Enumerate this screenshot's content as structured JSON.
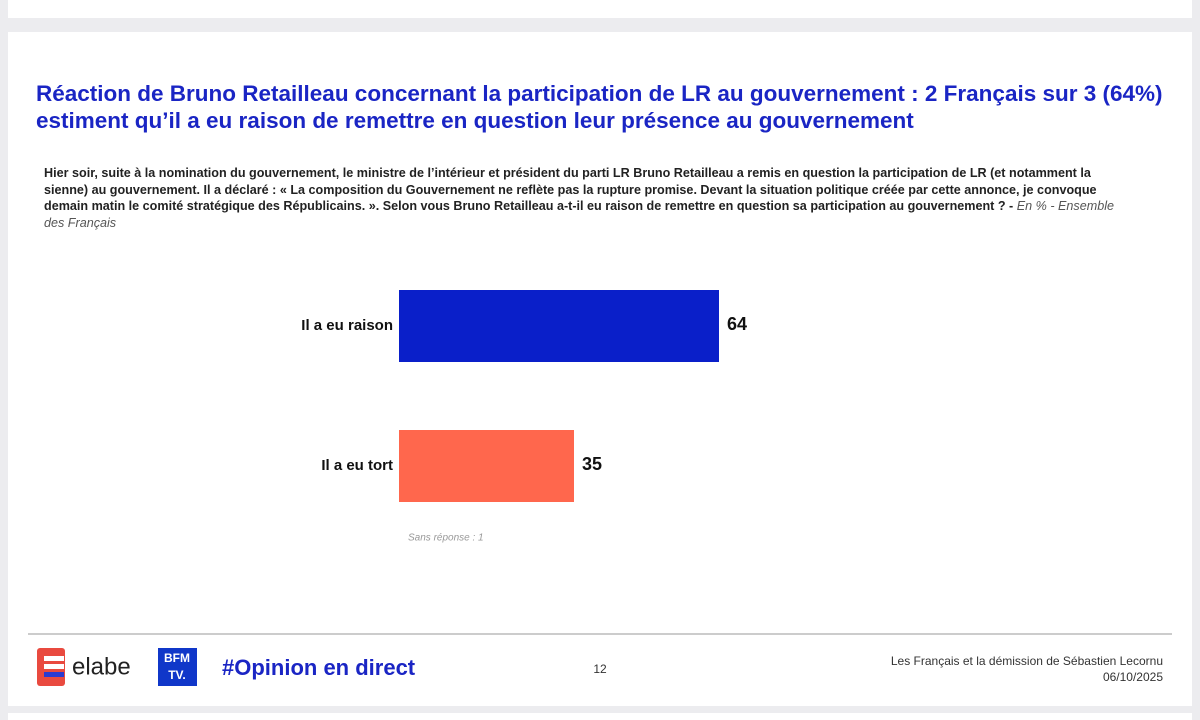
{
  "chart_data": {
    "type": "bar",
    "orientation": "horizontal",
    "title": "Réaction de Bruno Retailleau concernant la participation de LR au gouvernement : 2 Français sur 3 (64%) estiment qu’il a eu raison de remettre en question leur présence au gouvernement",
    "subtitle": "Hier soir, suite à la nomination du gouvernement, le ministre de l’intérieur et président du parti LR Bruno Retailleau a remis en question la participation de LR (et notamment la sienne) au gouvernement. Il a déclaré : « La composition du Gouvernement ne reflète pas la rupture promise. Devant la situation politique créée par cette annonce, je convoque demain matin le comité stratégique des Républicains. ». Selon vous Bruno Retailleau a-t-il eu raison de remettre en question sa participation au gouvernement ? -",
    "subtitle_note": "En % - Ensemble des Français",
    "categories": [
      "Il a eu raison",
      "Il a eu tort"
    ],
    "values": [
      64,
      35
    ],
    "colors": [
      "#0a1fc9",
      "#ff674d"
    ],
    "annotation": "Sans réponse : 1"
  },
  "footer": {
    "brand": "elabe",
    "logo_top": "BFM",
    "logo_bottom": "TV.",
    "hashtag": "#Opinion en direct",
    "page": "12",
    "study": "Les Français et la démission de Sébastien Lecornu",
    "date": "06/10/2025"
  }
}
